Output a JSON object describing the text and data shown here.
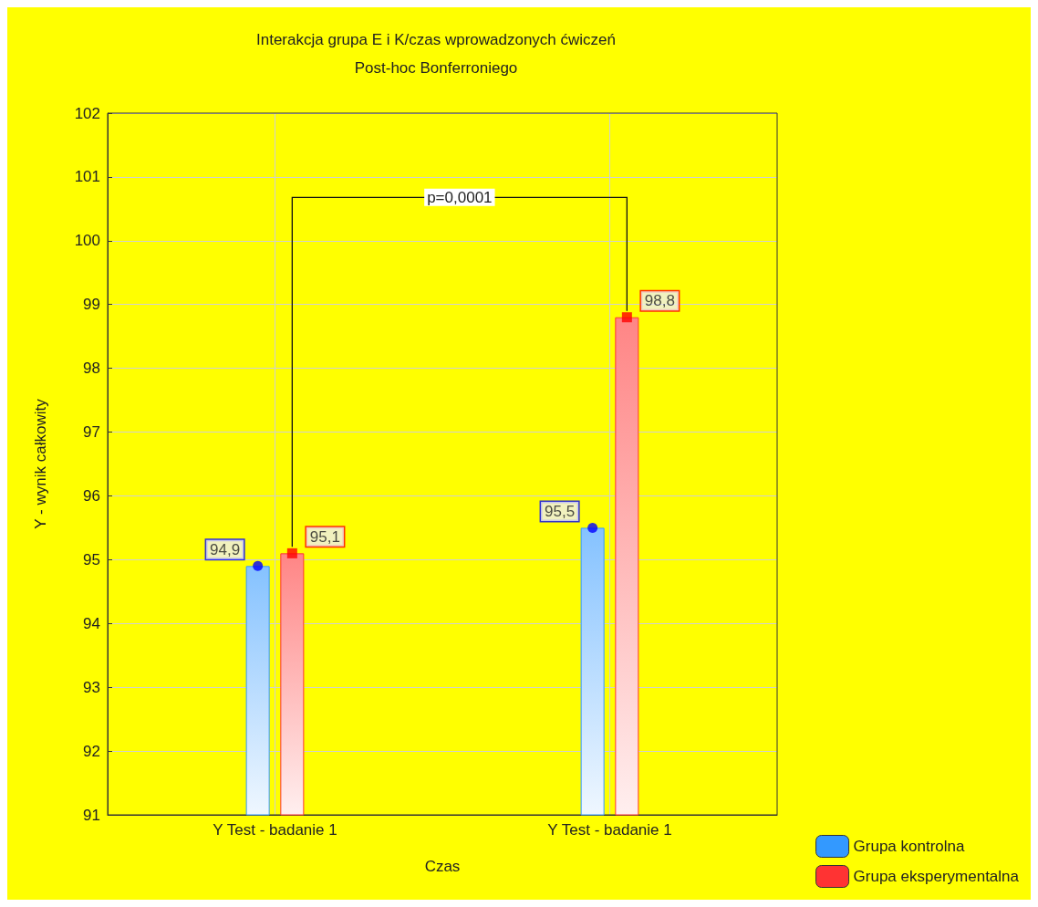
{
  "chart_data": {
    "type": "bar",
    "title": "Interakcja grupa E i K/czas wprowadzonych ćwiczeń",
    "subtitle": "Post-hoc Bonferroniego",
    "xlabel": "Czas",
    "ylabel": "Y - wynik całkowity",
    "categories": [
      "Y Test - badanie 1",
      "Y Test - badanie 1"
    ],
    "series": [
      {
        "name": "Grupa kontrolna",
        "color": "#3399ff",
        "values": [
          94.9,
          95.5
        ]
      },
      {
        "name": "Grupa eksperymentalna",
        "color": "#ff3333",
        "values": [
          95.1,
          98.8
        ]
      },
      {
        "type": "scatter",
        "color": "#0000ff",
        "marker": "circle",
        "values": [
          94.9,
          95.5
        ],
        "value_labels": [
          "94,9",
          "95,5"
        ]
      },
      {
        "type": "scatter",
        "color": "#ff0000",
        "marker": "square",
        "values": [
          95.1,
          98.8
        ],
        "value_labels": [
          "95,1",
          "98,8"
        ]
      }
    ],
    "ylim": [
      91,
      102
    ],
    "yticks": [
      91,
      92,
      93,
      94,
      95,
      96,
      97,
      98,
      99,
      100,
      101,
      102
    ],
    "grid": true,
    "legend": "bottom right",
    "annotations": [
      "p=0,0001"
    ]
  }
}
